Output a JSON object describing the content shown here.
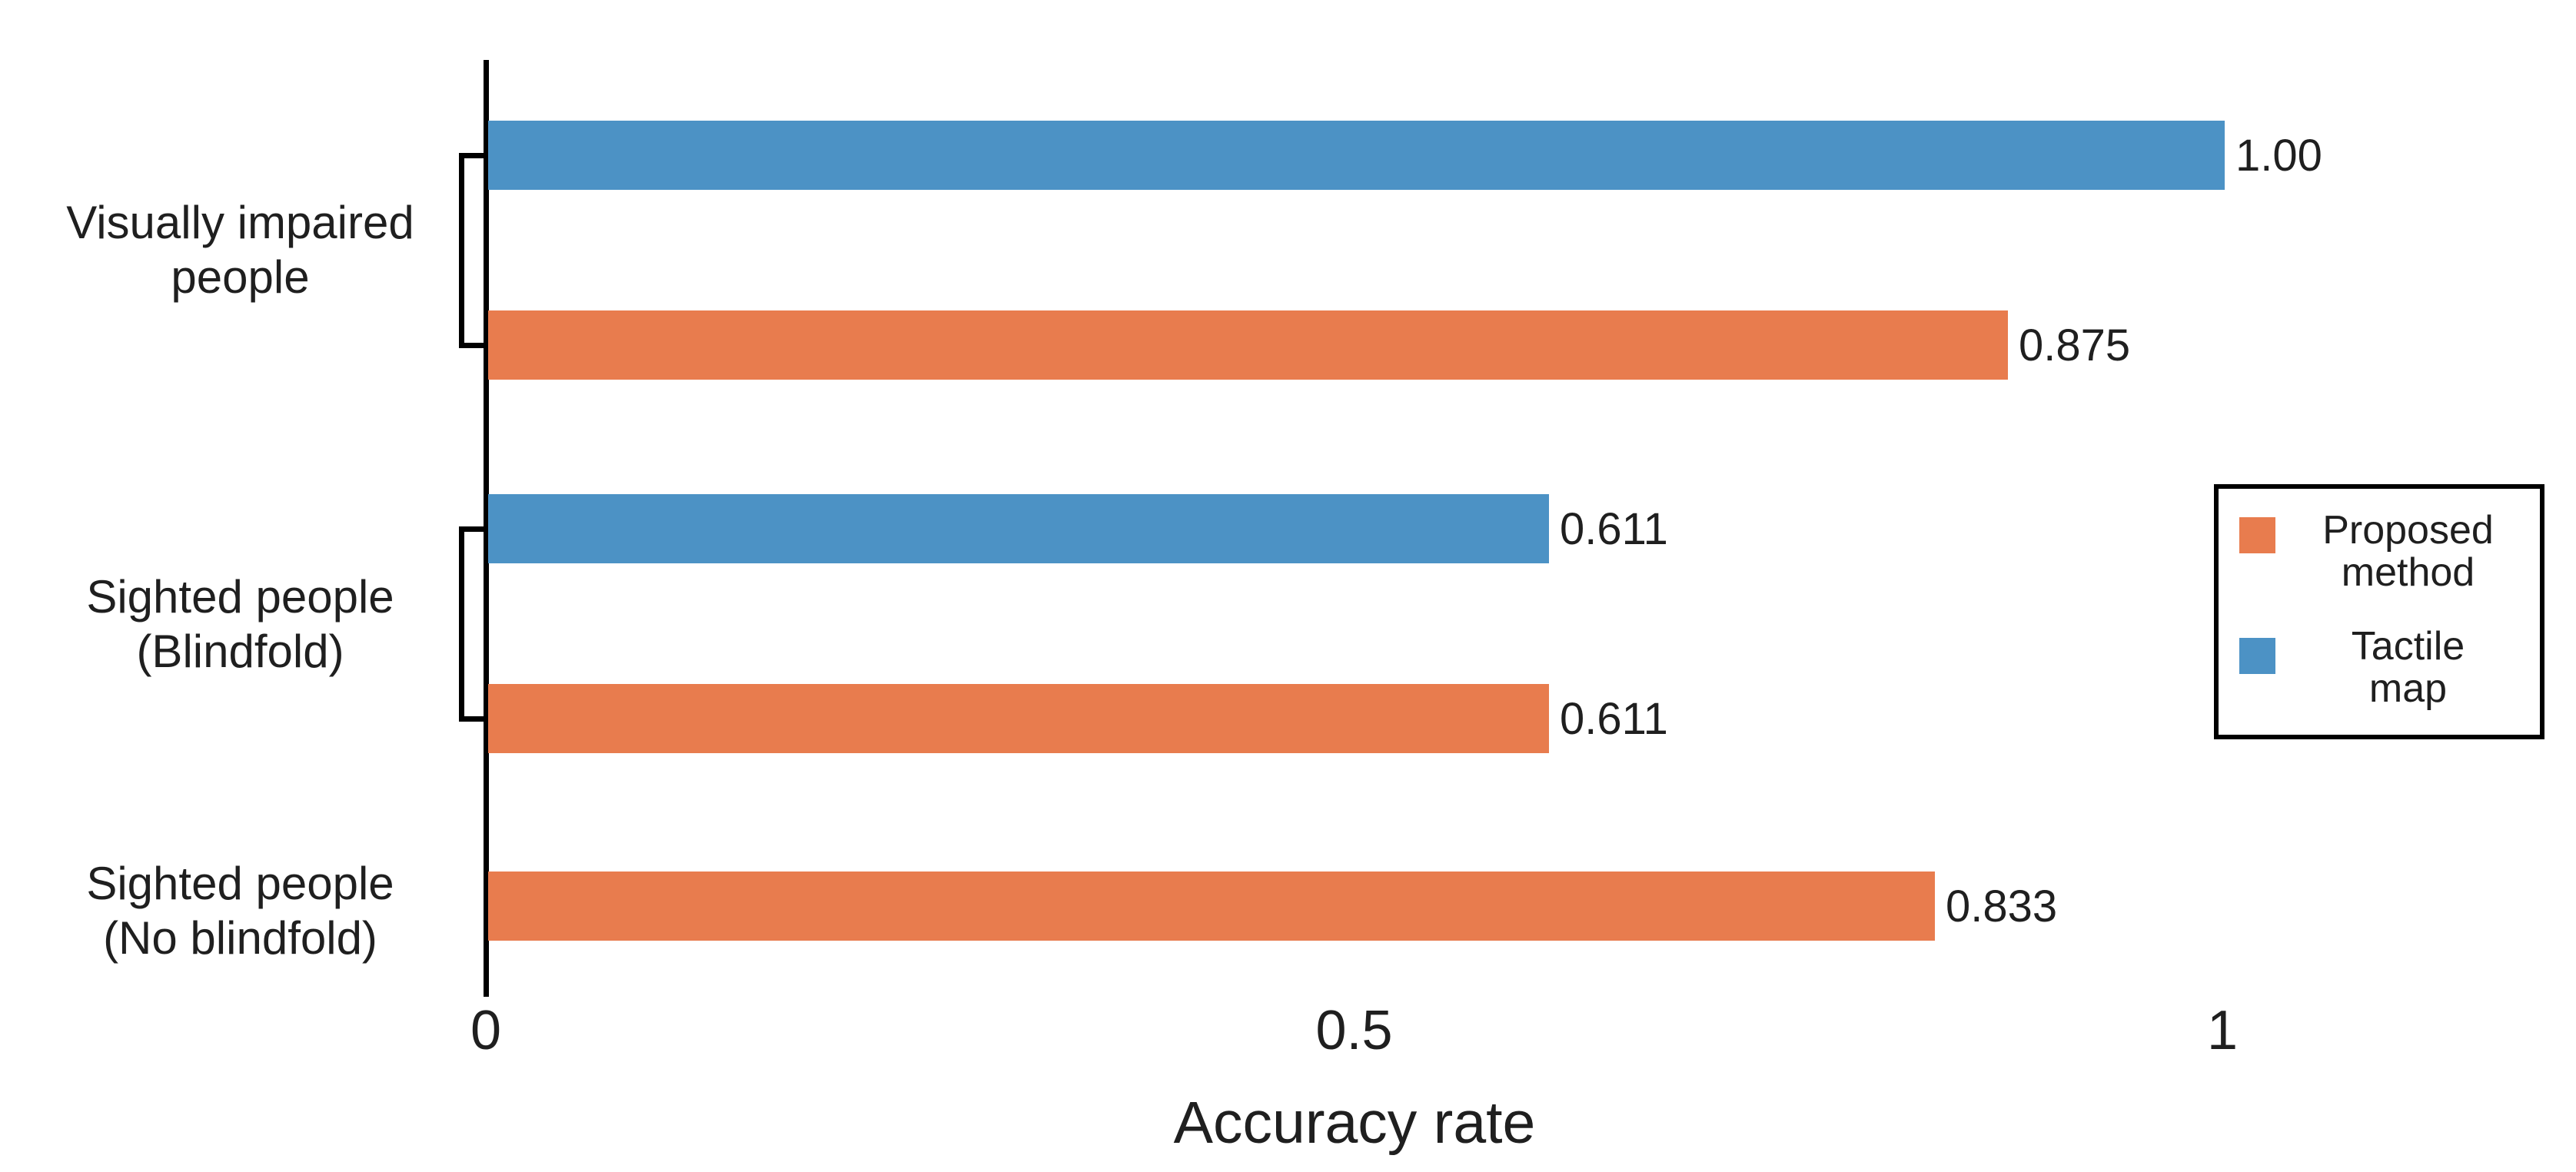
{
  "chart_data": {
    "type": "bar",
    "orientation": "horizontal",
    "xlabel": "Accuracy rate",
    "xlim": [
      0,
      1
    ],
    "grid": false,
    "legend_position": "center-right",
    "ticks": [
      {
        "label": "0",
        "value": 0
      },
      {
        "label": "0.5",
        "value": 0.5
      },
      {
        "label": "1",
        "value": 1
      }
    ],
    "series_colors": {
      "Proposed method": "#E87C4E",
      "Tactile map": "#4C92C5"
    },
    "colors": {
      "axis": "#000000",
      "text": "#1F1F1F",
      "background": "#FFFFFF"
    },
    "groups": [
      {
        "category_lines": [
          "Visually impaired",
          "people"
        ],
        "bracket": true,
        "bars": [
          {
            "series": "Tactile map",
            "value": 1.0,
            "label": "1.00"
          },
          {
            "series": "Proposed method",
            "value": 0.875,
            "label": "0.875"
          }
        ]
      },
      {
        "category_lines": [
          "Sighted people",
          "(Blindfold)"
        ],
        "bracket": true,
        "bars": [
          {
            "series": "Tactile map",
            "value": 0.611,
            "label": "0.611"
          },
          {
            "series": "Proposed method",
            "value": 0.611,
            "label": "0.611"
          }
        ]
      },
      {
        "category_lines": [
          "Sighted people",
          "(No blindfold)"
        ],
        "bracket": false,
        "bars": [
          {
            "series": "Proposed method",
            "value": 0.833,
            "label": "0.833"
          }
        ]
      }
    ],
    "legend": {
      "items": [
        {
          "series": "Proposed method",
          "label_lines": [
            "Proposed",
            "method"
          ],
          "color": "#E87C4E"
        },
        {
          "series": "Tactile map",
          "label_lines": [
            "Tactile",
            "map"
          ],
          "color": "#4C92C5"
        }
      ]
    }
  }
}
